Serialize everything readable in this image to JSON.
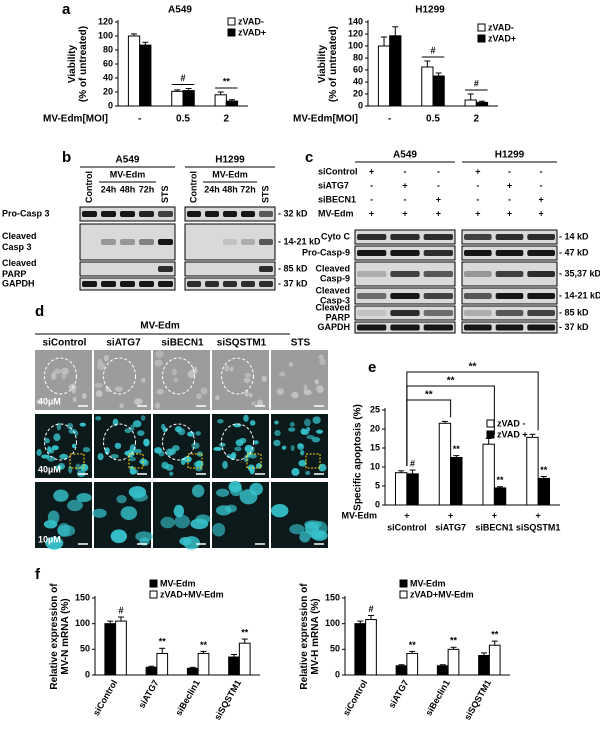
{
  "panel_labels": [
    "a",
    "b",
    "c",
    "d",
    "e",
    "f"
  ],
  "chart_data": [
    {
      "type": "bar",
      "title": "A549",
      "x_label": "MV-Edm[MOI]",
      "y_label": [
        "Viability",
        "(% of untreated)"
      ],
      "categories": [
        "-",
        "0.5",
        "2"
      ],
      "series": [
        {
          "name": "zVAD-",
          "color": "#ffffff",
          "values": [
            100,
            21,
            16
          ],
          "errors": [
            3,
            2,
            4
          ]
        },
        {
          "name": "zVAD+",
          "color": "#000000",
          "values": [
            87,
            22,
            7
          ],
          "errors": [
            4,
            3,
            2
          ]
        }
      ],
      "ylim": [
        0,
        120
      ],
      "yticks": [
        0,
        20,
        40,
        60,
        80,
        100,
        120
      ],
      "annotations": [
        "#",
        "**"
      ]
    },
    {
      "type": "bar",
      "title": "H1299",
      "x_label": "MV-Edm[MOI]",
      "y_label": [
        "Viability",
        "(% of untreated)"
      ],
      "categories": [
        "-",
        "0.5",
        "2"
      ],
      "series": [
        {
          "name": "zVAD-",
          "color": "#ffffff",
          "values": [
            100,
            65,
            10
          ],
          "errors": [
            15,
            10,
            10
          ]
        },
        {
          "name": "zVAD+",
          "color": "#000000",
          "values": [
            117,
            50,
            6
          ],
          "errors": [
            15,
            5,
            2
          ]
        }
      ],
      "ylim": [
        0,
        140
      ],
      "yticks": [
        0,
        20,
        40,
        60,
        80,
        100,
        120,
        140
      ],
      "annotations": [
        "#",
        "#"
      ]
    },
    {
      "type": "bar",
      "y_label": [
        "Specific apoptosis (%)"
      ],
      "row_label": "MV-Edm",
      "row_marks": [
        "+",
        "+",
        "+",
        "+"
      ],
      "categories": [
        "siControl",
        "siATG7",
        "siBECN1",
        "siSQSTM1"
      ],
      "series": [
        {
          "name": "zVAD -",
          "color": "#ffffff",
          "values": [
            8.5,
            21.5,
            16,
            17.8
          ],
          "errors": [
            0.5,
            0.5,
            1.5,
            0.8
          ]
        },
        {
          "name": "zVAD +",
          "color": "#000000",
          "values": [
            8.2,
            12.5,
            4.5,
            7
          ],
          "errors": [
            1,
            0.5,
            0.3,
            0.5
          ]
        }
      ],
      "ylim": [
        0,
        25
      ],
      "yticks": [
        0,
        5,
        10,
        15,
        20,
        25
      ],
      "annotations": [
        "**",
        "**",
        "**",
        "#",
        "**",
        "**",
        "**"
      ]
    },
    {
      "type": "bar",
      "y_label": [
        "Relative expression of",
        "MV-N mRNA (%)"
      ],
      "categories": [
        "siControl",
        "siATG7",
        "siBeclin1",
        "siSQSTM1"
      ],
      "series": [
        {
          "name": "MV-Edm",
          "color": "#000000",
          "values": [
            100,
            15,
            13,
            35
          ],
          "errors": [
            5,
            2,
            2,
            5
          ]
        },
        {
          "name": "zVAD+MV-Edm",
          "color": "#ffffff",
          "values": [
            105,
            42,
            42,
            62
          ],
          "errors": [
            8,
            10,
            4,
            8
          ]
        }
      ],
      "ylim": [
        0,
        150
      ],
      "yticks": [
        0,
        50,
        100,
        150
      ],
      "annotations": [
        "#",
        "**",
        "**",
        "**"
      ]
    },
    {
      "type": "bar",
      "y_label": [
        "Relative expression of",
        "MV-H mRNA (%)"
      ],
      "categories": [
        "siControl",
        "siATG7",
        "siBeclin1",
        "siSQSTM1"
      ],
      "series": [
        {
          "name": "MV-Edm",
          "color": "#000000",
          "values": [
            100,
            18,
            18,
            38
          ],
          "errors": [
            5,
            2,
            2,
            5
          ]
        },
        {
          "name": "zVAD+MV-Edm",
          "color": "#ffffff",
          "values": [
            108,
            42,
            50,
            58
          ],
          "errors": [
            8,
            4,
            4,
            8
          ]
        }
      ],
      "ylim": [
        0,
        150
      ],
      "yticks": [
        0,
        50,
        100,
        150
      ],
      "annotations": [
        "#",
        "**",
        "**",
        "**"
      ]
    }
  ],
  "panel_b": {
    "cells": [
      "A549",
      "H1299"
    ],
    "treatment": "MV-Edm",
    "lanes": [
      "Control",
      "24h",
      "48h",
      "72h",
      "STS"
    ],
    "rows": [
      [
        "Pro-Casp 3"
      ],
      [
        "Cleaved",
        "Casp 3"
      ],
      [
        "Cleaved",
        "PARP"
      ],
      [
        "GAPDH"
      ]
    ],
    "sizes": [
      "- 32 kD",
      "- 14-21 kD",
      "- 85 kD",
      "- 37 kD"
    ]
  },
  "panel_c": {
    "cells": [
      "A549",
      "H1299"
    ],
    "conditions": [
      {
        "label": "siControl",
        "marks": [
          "+",
          "-",
          "-",
          "+",
          "-",
          "-"
        ]
      },
      {
        "label": "siATG7",
        "marks": [
          "-",
          "+",
          "-",
          "-",
          "+",
          "-"
        ]
      },
      {
        "label": "siBECN1",
        "marks": [
          "-",
          "-",
          "+",
          "-",
          "-",
          "+"
        ]
      },
      {
        "label": "MV-Edm",
        "marks": [
          "+",
          "+",
          "+",
          "+",
          "+",
          "+"
        ]
      }
    ],
    "rows": [
      [
        "Cyto C"
      ],
      [
        "Pro-Casp-9"
      ],
      [
        "Cleaved",
        "Casp-9"
      ],
      [
        "Cleaved",
        "Casp-3"
      ],
      [
        "Cleaved",
        "PARP"
      ],
      [
        "GAPDH"
      ]
    ],
    "sizes": [
      "- 14 kD",
      "- 47 kD",
      "- 35,37 kD",
      "- 14-21 kD",
      "- 85 kD",
      "- 37 kD"
    ]
  },
  "panel_d": {
    "treatment": "MV-Edm",
    "columns": [
      "siControl",
      "siATG7",
      "siBECN1",
      "siSQSTM1",
      "STS"
    ],
    "scales": [
      "40µM",
      "40µM",
      "10µM"
    ]
  }
}
